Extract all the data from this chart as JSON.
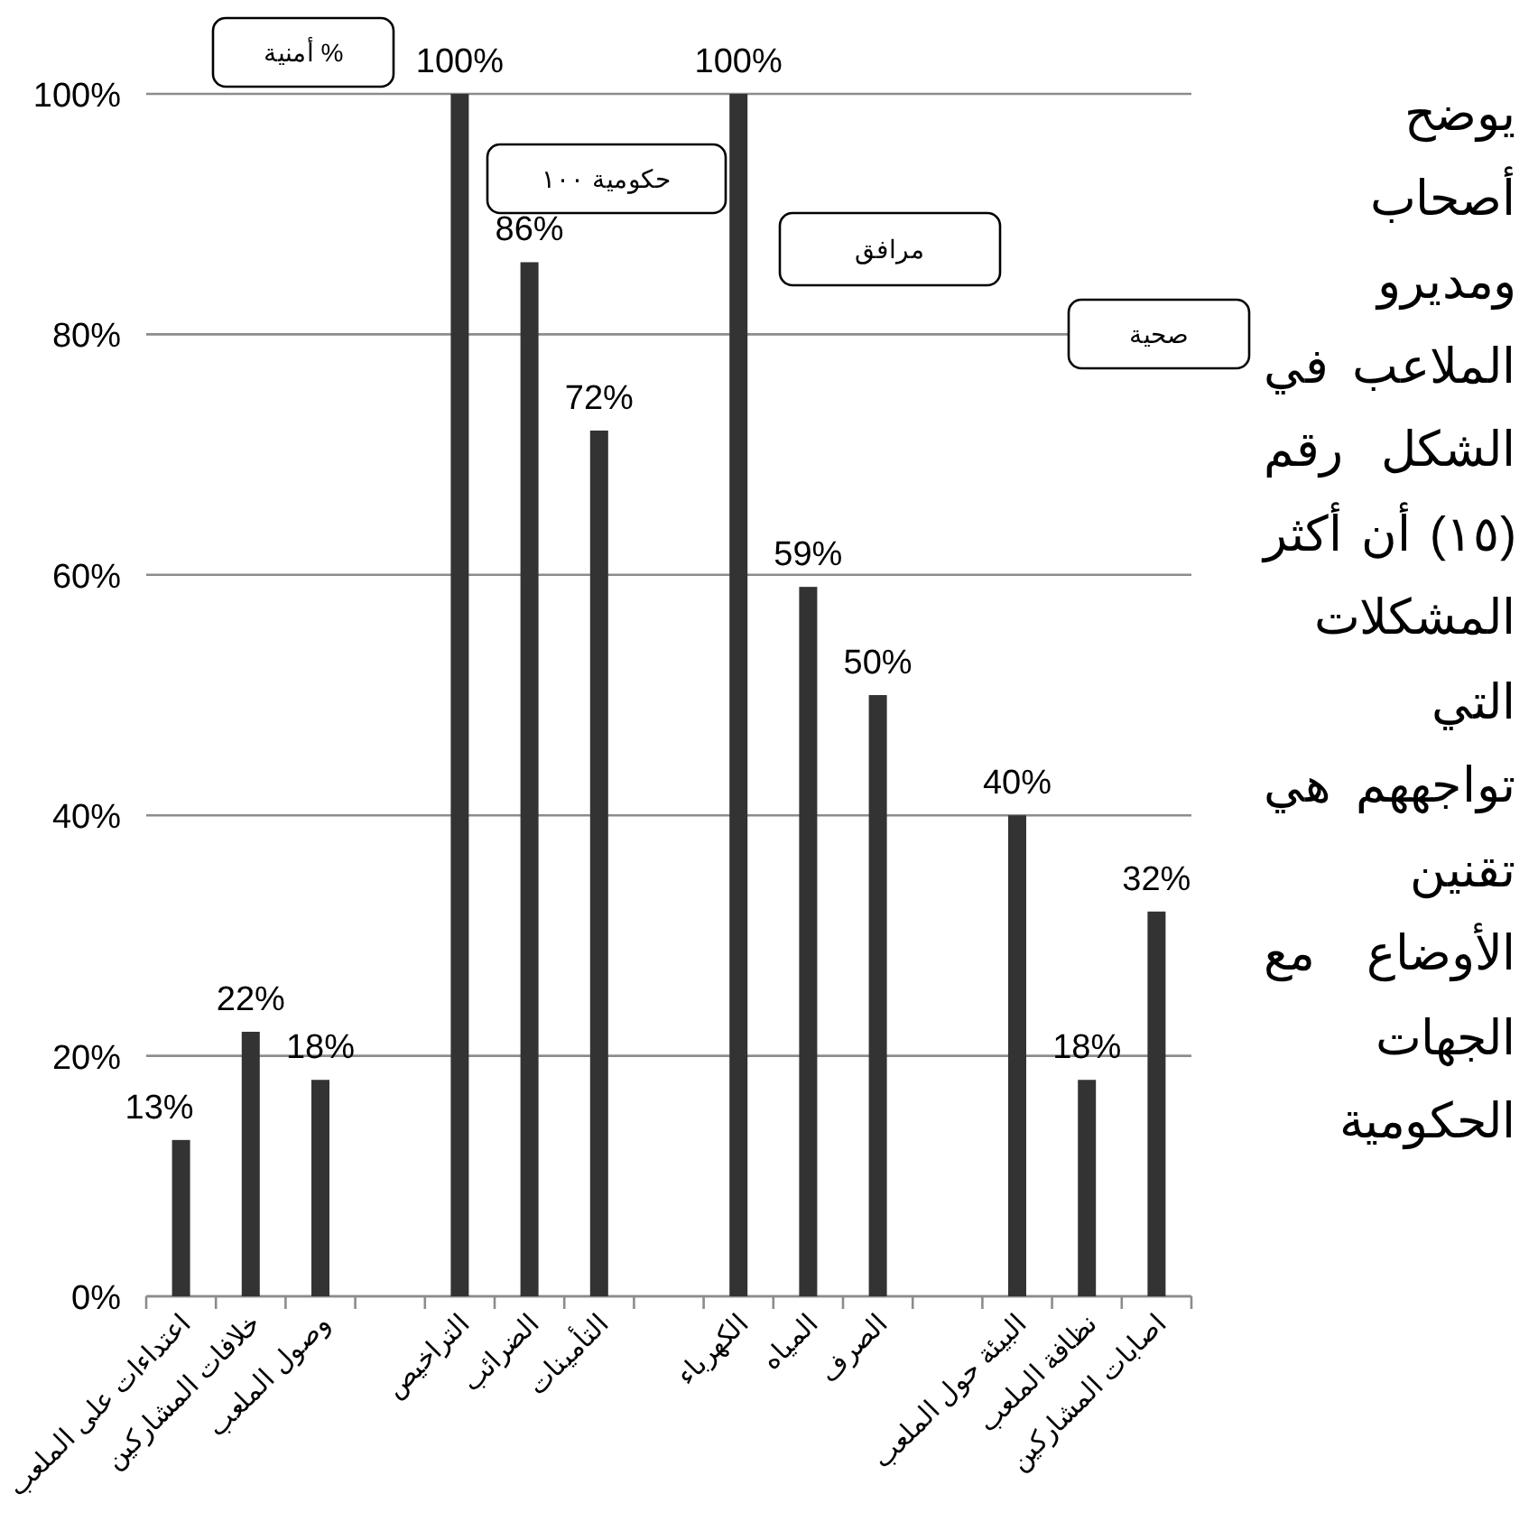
{
  "chart_data": {
    "type": "bar",
    "categories": [
      "اعتداءات على الملعب",
      "خلافات المشاركين",
      "وصول الملعب",
      null,
      "التراخيص",
      "الضرائب",
      "التأمينات",
      null,
      "الكهرباء",
      "المياه",
      "الصرف",
      null,
      "البيئة حول الملعب",
      "نظافة الملعب",
      "اصابات المشاركين"
    ],
    "values": [
      13,
      22,
      18,
      null,
      100,
      86,
      72,
      null,
      100,
      59,
      50,
      null,
      40,
      18,
      32
    ],
    "value_labels": [
      "13%",
      "22%",
      "18%",
      null,
      "100%",
      "86%",
      "72%",
      null,
      "100%",
      "59%",
      "50%",
      null,
      "40%",
      "18%",
      "32%"
    ],
    "color": "#333333",
    "ylim": [
      0,
      100
    ],
    "yticks": [
      {
        "value": 0,
        "label": "0%"
      },
      {
        "value": 20,
        "label": "20%"
      },
      {
        "value": 40,
        "label": "40%"
      },
      {
        "value": 60,
        "label": "60%"
      },
      {
        "value": 80,
        "label": "80%"
      },
      {
        "value": 100,
        "label": "100%"
      }
    ],
    "grid": "y",
    "annotations": [
      "أمنية %",
      "حكومية ١٠٠",
      "مرافق",
      "صحية",
      "يوضح أصحاب ومديرو الملاعب في الشكل رقم (١٥) أن أكثر المشكلات التي تواجههم هي تقنين الأوضاع مع الجهات الحكومية"
    ]
  }
}
